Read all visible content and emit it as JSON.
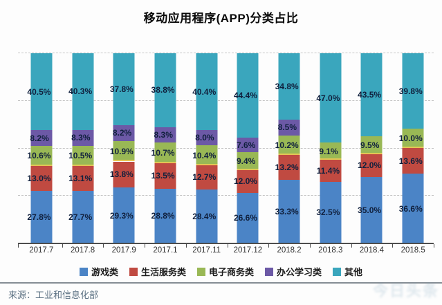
{
  "title": "移动应用程序(APP)分类占比",
  "chart_data": {
    "type": "bar",
    "subtype": "stacked-percentage-column",
    "title": "移动应用程序(APP)分类占比",
    "categories": [
      "2017.7",
      "2017.8",
      "2017.9",
      "2017.1",
      "2017.11",
      "2017.12",
      "2018.2",
      "2018.3",
      "2018.4",
      "2018.5"
    ],
    "series": [
      {
        "name": "游戏类",
        "color": "#4b84c6",
        "values": [
          27.8,
          27.7,
          29.3,
          28.8,
          28.4,
          26.6,
          33.3,
          32.5,
          35.0,
          36.6
        ]
      },
      {
        "name": "生活服务类",
        "color": "#c04a41",
        "values": [
          13.0,
          13.1,
          13.8,
          13.5,
          12.7,
          12.0,
          13.2,
          11.4,
          12.0,
          13.6
        ]
      },
      {
        "name": "电子商务类",
        "color": "#99b855",
        "values": [
          10.6,
          10.5,
          10.9,
          10.7,
          10.4,
          9.4,
          10.2,
          9.1,
          9.5,
          10.0
        ]
      },
      {
        "name": "办公学习类",
        "color": "#6c59a6",
        "values": [
          8.2,
          8.3,
          8.2,
          8.3,
          8.0,
          7.6,
          8.5,
          null,
          null,
          null
        ]
      },
      {
        "name": "其他",
        "color": "#3aa6bd",
        "values": [
          40.5,
          40.3,
          37.8,
          38.8,
          40.4,
          44.4,
          34.8,
          47.0,
          43.5,
          39.8
        ]
      }
    ],
    "value_suffix": "%",
    "ylim": [
      0,
      100
    ],
    "gridlines": [
      0,
      25,
      50,
      75,
      100
    ],
    "grid_style": "dashed-horizontal",
    "legend_position": "bottom",
    "label_color": "#10203d",
    "segment_divider_color": "#e3c655"
  },
  "footer": {
    "source": "来源：工业和信息化部"
  },
  "watermark": {
    "text": "今日头条"
  }
}
